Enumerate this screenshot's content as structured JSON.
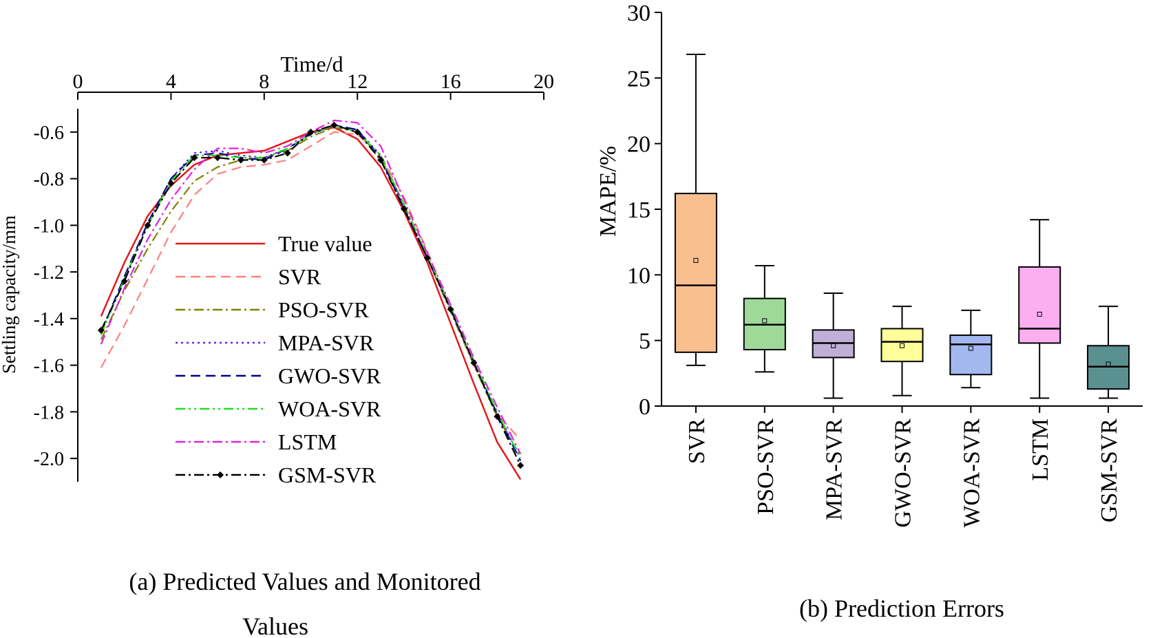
{
  "chart_data": [
    {
      "type": "line",
      "panel_caption_line1": "(a) Predicted Values and Monitored",
      "panel_caption_line2": "Values",
      "xlabel": "Time/d",
      "ylabel": "Settling capacity/mm",
      "xlim": [
        0,
        20
      ],
      "ylim": [
        -2.1,
        -0.5
      ],
      "xticks": [
        "0",
        "4",
        "8",
        "12",
        "16",
        "20"
      ],
      "yticks": [
        "-0.6",
        "-0.8",
        "-1.0",
        "-1.2",
        "-1.4",
        "-1.6",
        "-1.8",
        "-2.0"
      ],
      "x": [
        1,
        2,
        3,
        4,
        5,
        6,
        7,
        8,
        9,
        10,
        11,
        12,
        13,
        14,
        15,
        16,
        17,
        18,
        19
      ],
      "legend_position": "center-left",
      "series": [
        {
          "name": "True value",
          "color": "#e31a1c",
          "dash": "solid",
          "values": [
            -1.39,
            -1.16,
            -0.96,
            -0.83,
            -0.74,
            -0.7,
            -0.69,
            -0.68,
            -0.64,
            -0.6,
            -0.58,
            -0.63,
            -0.75,
            -0.94,
            -1.16,
            -1.42,
            -1.68,
            -1.93,
            -2.09
          ]
        },
        {
          "name": "SVR",
          "color": "#ff7f7f",
          "dash": "dashed",
          "values": [
            -1.61,
            -1.43,
            -1.23,
            -1.03,
            -0.87,
            -0.78,
            -0.75,
            -0.74,
            -0.72,
            -0.66,
            -0.6,
            -0.61,
            -0.7,
            -0.88,
            -1.11,
            -1.36,
            -1.6,
            -1.81,
            -1.92
          ]
        },
        {
          "name": "PSO-SVR",
          "color": "#808000",
          "dash": "dashdot",
          "values": [
            -1.49,
            -1.28,
            -1.1,
            -0.94,
            -0.81,
            -0.75,
            -0.72,
            -0.71,
            -0.68,
            -0.62,
            -0.58,
            -0.6,
            -0.71,
            -0.91,
            -1.14,
            -1.37,
            -1.6,
            -1.82,
            -1.99
          ]
        },
        {
          "name": "MPA-SVR",
          "color": "#6a1bff",
          "dash": "dotted",
          "values": [
            -1.46,
            -1.23,
            -0.99,
            -0.8,
            -0.69,
            -0.68,
            -0.7,
            -0.71,
            -0.67,
            -0.61,
            -0.57,
            -0.59,
            -0.7,
            -0.92,
            -1.14,
            -1.36,
            -1.59,
            -1.8,
            -2.0
          ]
        },
        {
          "name": "GWO-SVR",
          "color": "#00008b",
          "dash": "dashed",
          "values": [
            -1.46,
            -1.22,
            -0.99,
            -0.8,
            -0.7,
            -0.69,
            -0.71,
            -0.72,
            -0.67,
            -0.61,
            -0.57,
            -0.59,
            -0.71,
            -0.93,
            -1.14,
            -1.36,
            -1.59,
            -1.81,
            -2.01
          ]
        },
        {
          "name": "WOA-SVR",
          "color": "#22dd22",
          "dash": "dashdotdot",
          "values": [
            -1.47,
            -1.23,
            -1.0,
            -0.81,
            -0.7,
            -0.7,
            -0.71,
            -0.71,
            -0.67,
            -0.61,
            -0.57,
            -0.6,
            -0.7,
            -0.91,
            -1.13,
            -1.35,
            -1.58,
            -1.8,
            -2.0
          ]
        },
        {
          "name": "LSTM",
          "color": "#e020e0",
          "dash": "dashdot",
          "values": [
            -1.51,
            -1.27,
            -1.06,
            -0.89,
            -0.76,
            -0.67,
            -0.67,
            -0.69,
            -0.66,
            -0.6,
            -0.55,
            -0.56,
            -0.66,
            -0.89,
            -1.12,
            -1.34,
            -1.57,
            -1.78,
            -1.98
          ]
        },
        {
          "name": "GSM-SVR",
          "color": "#000000",
          "dash": "dashdot",
          "marker": "diamond",
          "values": [
            -1.45,
            -1.24,
            -1.0,
            -0.82,
            -0.71,
            -0.71,
            -0.72,
            -0.72,
            -0.69,
            -0.6,
            -0.57,
            -0.6,
            -0.72,
            -0.93,
            -1.14,
            -1.36,
            -1.59,
            -1.82,
            -2.03
          ]
        }
      ]
    },
    {
      "type": "box",
      "panel_caption": "(b) Prediction Errors",
      "ylabel": "MAPE/%",
      "ylim": [
        0,
        30
      ],
      "yticks": [
        "0",
        "5",
        "10",
        "15",
        "20",
        "25",
        "30"
      ],
      "boxes": [
        {
          "name": "SVR",
          "color": "#f9c08f",
          "min": 3.1,
          "q1": 4.1,
          "median": 9.2,
          "q3": 16.2,
          "max": 26.8,
          "mean": 11.1
        },
        {
          "name": "PSO-SVR",
          "color": "#9ed99a",
          "min": 2.6,
          "q1": 4.3,
          "median": 6.2,
          "q3": 8.2,
          "max": 10.7,
          "mean": 6.5
        },
        {
          "name": "MPA-SVR",
          "color": "#c0b0d6",
          "min": 0.6,
          "q1": 3.7,
          "median": 4.8,
          "q3": 5.8,
          "max": 8.6,
          "mean": 4.6
        },
        {
          "name": "GWO-SVR",
          "color": "#ffff99",
          "min": 0.8,
          "q1": 3.4,
          "median": 4.9,
          "q3": 5.9,
          "max": 7.6,
          "mean": 4.6
        },
        {
          "name": "WOA-SVR",
          "color": "#a4b8f0",
          "min": 1.4,
          "q1": 2.4,
          "median": 4.7,
          "q3": 5.4,
          "max": 7.3,
          "mean": 4.4
        },
        {
          "name": "LSTM",
          "color": "#fbaef0",
          "min": 0.6,
          "q1": 4.8,
          "median": 5.9,
          "q3": 10.6,
          "max": 14.2,
          "mean": 7.0
        },
        {
          "name": "GSM-SVR",
          "color": "#5b9090",
          "min": 0.6,
          "q1": 1.3,
          "median": 3.0,
          "q3": 4.6,
          "max": 7.6,
          "mean": 3.2
        }
      ]
    }
  ]
}
